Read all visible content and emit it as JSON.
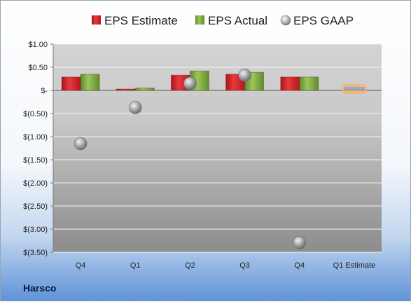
{
  "company": "Harsco",
  "chart_data": {
    "type": "bar",
    "categories": [
      "Q4",
      "Q1",
      "Q2",
      "Q3",
      "Q4",
      "Q1 Estimate"
    ],
    "ylim": [
      -3.5,
      1.0
    ],
    "yticks": [
      1.0,
      0.5,
      0.0,
      -0.5,
      -1.0,
      -1.5,
      -2.0,
      -2.5,
      -3.0,
      -3.5
    ],
    "ytick_labels": [
      "$1.00",
      "$0.50",
      "$-",
      "$(0.50)",
      "$(1.00)",
      "$(1.50)",
      "$(2.00)",
      "$(2.50)",
      "$(3.00)",
      "$(3.50)"
    ],
    "grid": true,
    "legend_position": "top",
    "series": [
      {
        "name": "EPS Estimate",
        "kind": "bar",
        "color": "#d6262b",
        "values": [
          0.29,
          0.03,
          0.33,
          0.35,
          0.29,
          null
        ]
      },
      {
        "name": "EPS Actual",
        "kind": "bar",
        "color": "#7aa63c",
        "values": [
          0.35,
          0.05,
          0.42,
          0.39,
          0.29,
          null
        ]
      },
      {
        "name": "EPS GAAP",
        "kind": "marker",
        "color": "#9a9a9a",
        "values": [
          -1.15,
          -0.37,
          0.15,
          0.33,
          -3.29,
          null
        ]
      },
      {
        "name": "Q1 Estimate",
        "kind": "estimate",
        "color": "#8fb4e3",
        "highlight": "#f7b267",
        "values": [
          null,
          null,
          null,
          null,
          null,
          0.03
        ]
      }
    ]
  }
}
